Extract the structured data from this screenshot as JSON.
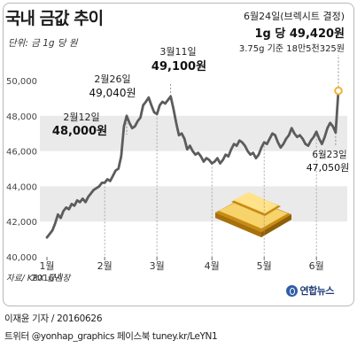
{
  "header": {
    "title": "국내 금값 추이",
    "unit": "단위: 금 1g 당 원"
  },
  "footer": {
    "source": "자료/ KRX 금시장",
    "credit": "이재윤 기자 / 20160626",
    "social": "트위터 @yonhap_graphics  페이스북 tuney.kr/LeYN1",
    "logo": "연합뉴스"
  },
  "colors": {
    "line": "#5c5c5c",
    "band": "#eaeaea",
    "marker_ring": "#f2b233",
    "gold_light": "#f7d36b",
    "gold_dark": "#c88b12"
  },
  "chart_data": {
    "type": "line",
    "title": "국내 금값 추이",
    "unit": "금 1g 당 원",
    "ylim": [
      40000,
      50000
    ],
    "yticks": [
      "40,000",
      "42,000",
      "44,000",
      "46,000",
      "48,000",
      "50,000"
    ],
    "xticks": [
      {
        "label": "1월",
        "sublabel": "2016년",
        "x": 1
      },
      {
        "label": "2월",
        "x": 22
      },
      {
        "label": "3월",
        "x": 41
      },
      {
        "label": "4월",
        "x": 61
      },
      {
        "label": "5월",
        "x": 80
      },
      {
        "label": "6월",
        "x": 99
      }
    ],
    "grid": "alternating-bands",
    "series": [
      {
        "points": [
          [
            1,
            41100
          ],
          [
            2,
            41300
          ],
          [
            3,
            41500
          ],
          [
            4,
            41900
          ],
          [
            5,
            42400
          ],
          [
            6,
            42200
          ],
          [
            7,
            42600
          ],
          [
            8,
            42800
          ],
          [
            9,
            42700
          ],
          [
            10,
            43000
          ],
          [
            11,
            42900
          ],
          [
            12,
            43200
          ],
          [
            13,
            43100
          ],
          [
            14,
            43300
          ],
          [
            15,
            43100
          ],
          [
            16,
            43400
          ],
          [
            17,
            43600
          ],
          [
            18,
            43800
          ],
          [
            19,
            43900
          ],
          [
            20,
            44000
          ],
          [
            21,
            44200
          ],
          [
            22,
            44200
          ],
          [
            23,
            44400
          ],
          [
            24,
            44300
          ],
          [
            25,
            44600
          ],
          [
            26,
            44900
          ],
          [
            27,
            45000
          ],
          [
            28,
            45700
          ],
          [
            29,
            47400
          ],
          [
            30,
            48000
          ],
          [
            31,
            47600
          ],
          [
            32,
            47300
          ],
          [
            33,
            47400
          ],
          [
            34,
            47700
          ],
          [
            35,
            47900
          ],
          [
            36,
            48600
          ],
          [
            37,
            48800
          ],
          [
            38,
            49040
          ],
          [
            39,
            48600
          ],
          [
            40,
            48200
          ],
          [
            41,
            48100
          ],
          [
            42,
            48600
          ],
          [
            43,
            48800
          ],
          [
            44,
            48700
          ],
          [
            45,
            48900
          ],
          [
            46,
            49100
          ],
          [
            47,
            48400
          ],
          [
            48,
            47600
          ],
          [
            49,
            46900
          ],
          [
            50,
            47000
          ],
          [
            51,
            46700
          ],
          [
            52,
            46100
          ],
          [
            53,
            46300
          ],
          [
            54,
            46000
          ],
          [
            55,
            45800
          ],
          [
            56,
            45900
          ],
          [
            57,
            45700
          ],
          [
            58,
            45400
          ],
          [
            59,
            45600
          ],
          [
            60,
            45500
          ],
          [
            61,
            45300
          ],
          [
            62,
            45400
          ],
          [
            63,
            45600
          ],
          [
            64,
            45300
          ],
          [
            65,
            45500
          ],
          [
            66,
            45800
          ],
          [
            67,
            45700
          ],
          [
            68,
            46100
          ],
          [
            69,
            46400
          ],
          [
            70,
            46300
          ],
          [
            71,
            46600
          ],
          [
            72,
            46500
          ],
          [
            73,
            46300
          ],
          [
            74,
            46000
          ],
          [
            75,
            45800
          ],
          [
            76,
            45900
          ],
          [
            77,
            45600
          ],
          [
            78,
            45800
          ],
          [
            79,
            46200
          ],
          [
            80,
            46500
          ],
          [
            81,
            46400
          ],
          [
            82,
            46700
          ],
          [
            83,
            47000
          ],
          [
            84,
            46900
          ],
          [
            85,
            46500
          ],
          [
            86,
            46200
          ],
          [
            87,
            46400
          ],
          [
            88,
            46700
          ],
          [
            89,
            46900
          ],
          [
            90,
            47300
          ],
          [
            91,
            47000
          ],
          [
            92,
            46800
          ],
          [
            93,
            46900
          ],
          [
            94,
            46700
          ],
          [
            95,
            46400
          ],
          [
            96,
            46300
          ],
          [
            97,
            46600
          ],
          [
            98,
            46800
          ],
          [
            99,
            47100
          ],
          [
            100,
            46700
          ],
          [
            101,
            46400
          ],
          [
            102,
            46800
          ],
          [
            103,
            47300
          ],
          [
            104,
            47600
          ],
          [
            105,
            47400
          ],
          [
            106,
            47050
          ],
          [
            107,
            49420
          ]
        ]
      }
    ],
    "annotations": [
      {
        "id": "feb12",
        "x": 30,
        "line1": "2월12일",
        "line2": "48,000원"
      },
      {
        "id": "feb26",
        "x": 38,
        "line1": "2월26일",
        "line2": "49,040원"
      },
      {
        "id": "mar11",
        "x": 46,
        "line1": "3월11일",
        "line2": "49,100원"
      },
      {
        "id": "jun23",
        "x": 106,
        "line1": "6월23일",
        "line2": "47,050원"
      },
      {
        "id": "jun24",
        "x": 107,
        "line1": "6월24일(브렉시트 결정)",
        "line2": "1g 당 49,420원",
        "line3": "3.75g 기준 18만5천325원"
      }
    ]
  }
}
